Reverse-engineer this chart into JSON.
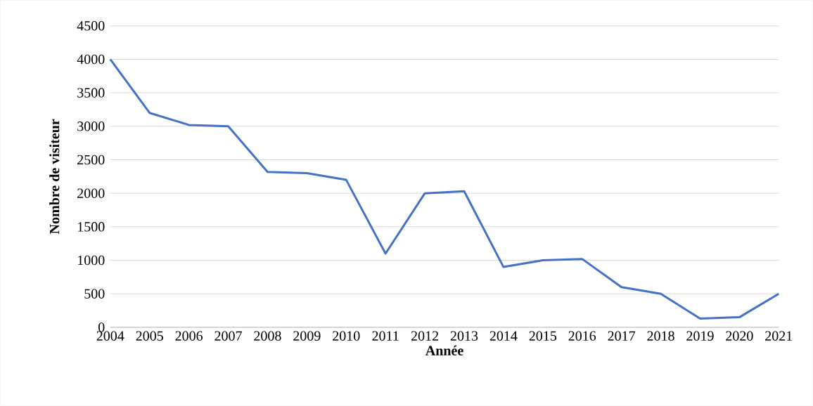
{
  "chart_data": {
    "type": "line",
    "xlabel": "Année",
    "ylabel": "Nombre de visiteur",
    "categories": [
      "2004",
      "2005",
      "2006",
      "2007",
      "2008",
      "2009",
      "2010",
      "2011",
      "2012",
      "2013",
      "2014",
      "2015",
      "2016",
      "2017",
      "2018",
      "2019",
      "2020",
      "2021"
    ],
    "values": [
      4000,
      3200,
      3020,
      3000,
      2320,
      2300,
      2200,
      1100,
      2000,
      2030,
      900,
      1000,
      1020,
      600,
      500,
      130,
      150,
      500
    ],
    "color": "#4472c4",
    "ylim": [
      0,
      4500
    ],
    "yticks": [
      0,
      500,
      1000,
      1500,
      2000,
      2500,
      3000,
      3500,
      4000,
      4500
    ],
    "grid": "y",
    "marker": "none",
    "line_style": "solid"
  }
}
